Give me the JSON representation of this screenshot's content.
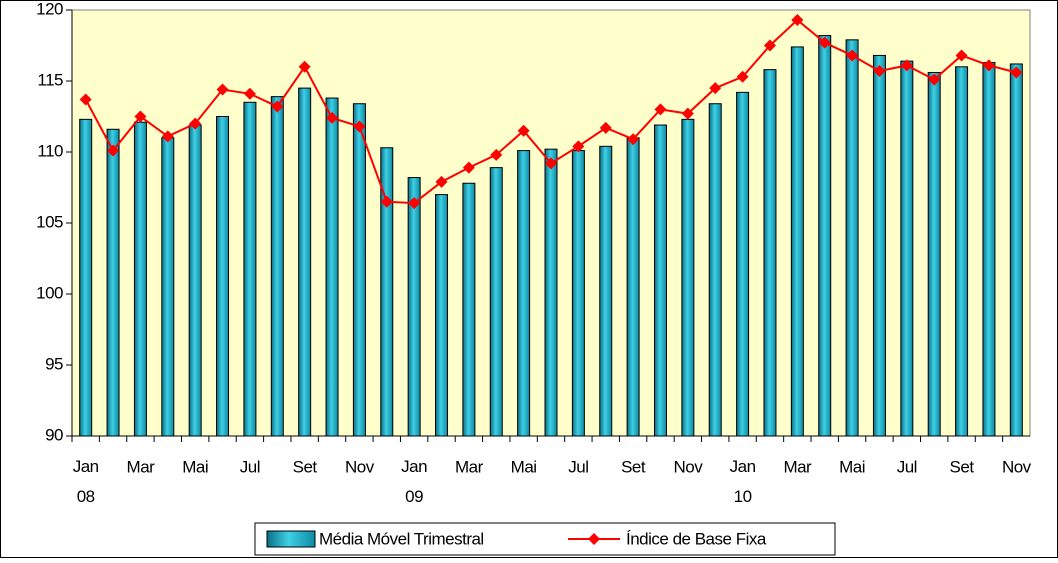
{
  "chart_data": {
    "type": "bar-line",
    "categories": [
      "Jan 08",
      null,
      "Mar",
      null,
      "Mai",
      null,
      "Jul",
      null,
      "Set",
      null,
      "Nov",
      null,
      "Jan 09",
      null,
      "Mar",
      null,
      "Mai",
      null,
      "Jul",
      null,
      "Set",
      null,
      "Nov",
      null,
      "Jan 10",
      null,
      "Mar",
      null,
      "Mai",
      null,
      "Jul",
      null,
      "Set",
      null,
      "Nov"
    ],
    "series": [
      {
        "name": "Média Móvel Trimestral",
        "type": "bar",
        "color": "#1fb5cf",
        "values": [
          112.3,
          111.6,
          112.1,
          111.0,
          111.9,
          112.5,
          113.5,
          113.9,
          114.5,
          113.8,
          113.4,
          110.3,
          108.2,
          107.0,
          107.8,
          108.9,
          110.1,
          110.2,
          110.1,
          110.4,
          111.0,
          111.9,
          112.3,
          113.4,
          114.2,
          115.8,
          117.4,
          118.2,
          117.9,
          116.8,
          116.4,
          115.6,
          116.0,
          116.3,
          116.2
        ]
      },
      {
        "name": "Índice de Base Fixa",
        "type": "line",
        "color": "#ff0000",
        "values": [
          113.7,
          110.1,
          112.5,
          111.1,
          112.0,
          114.4,
          114.1,
          113.2,
          116.0,
          112.4,
          111.8,
          106.5,
          106.4,
          107.9,
          108.9,
          109.8,
          111.5,
          109.2,
          110.4,
          111.7,
          110.9,
          113.0,
          112.7,
          114.5,
          115.3,
          117.5,
          119.3,
          117.7,
          116.8,
          115.7,
          116.1,
          115.1,
          116.8,
          116.1,
          115.6
        ]
      }
    ],
    "ylim": [
      90,
      120
    ],
    "yticks": [
      90,
      95,
      100,
      105,
      110,
      115,
      120
    ],
    "legend": "bottom",
    "background": "#ffffcc"
  }
}
